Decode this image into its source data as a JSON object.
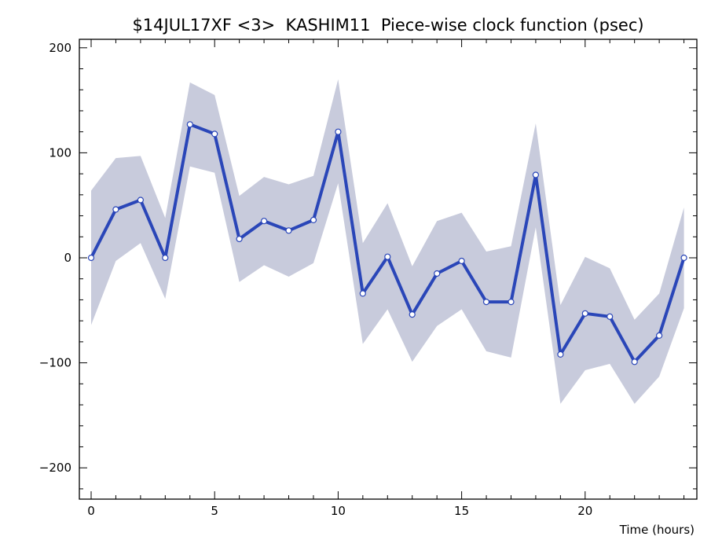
{
  "chart_data": {
    "type": "line",
    "title": "$14JUL17XF <3>  KASHIM11  Piece-wise clock function (psec)",
    "xlabel": "Time (hours)",
    "ylabel": "",
    "xlim": [
      -0.5,
      24.5
    ],
    "ylim": [
      -230,
      205
    ],
    "x_tick_labels": [
      "0",
      "5",
      "10",
      "15",
      "20"
    ],
    "y_tick_labels": [
      "200",
      "100",
      "0",
      "−100",
      "−200"
    ],
    "grid": false,
    "series": [
      {
        "x": [
          0,
          1,
          2,
          3,
          4,
          5,
          6,
          7,
          8,
          9,
          10,
          11,
          12,
          13,
          14,
          15,
          16,
          17,
          18,
          19,
          20,
          21,
          22,
          23,
          24
        ],
        "values": [
          0,
          46,
          55,
          0,
          127,
          118,
          18,
          35,
          26,
          36,
          120,
          -34,
          1,
          -54,
          -15,
          -3,
          -42,
          -42,
          79,
          -92,
          -53,
          -56,
          -99,
          -74,
          0
        ],
        "upper": [
          64,
          95,
          97,
          38,
          167,
          155,
          59,
          77,
          70,
          78,
          170,
          14,
          52,
          -8,
          35,
          43,
          6,
          11,
          128,
          -45,
          1,
          -10,
          -59,
          -34,
          48
        ],
        "lower": [
          -64,
          -3,
          14,
          -39,
          87,
          81,
          -23,
          -7,
          -18,
          -5,
          71,
          -82,
          -49,
          -99,
          -65,
          -49,
          -89,
          -95,
          29,
          -139,
          -107,
          -101,
          -139,
          -113,
          -48
        ]
      }
    ],
    "colors": {
      "line": "#2a46b8",
      "band": "#c8cbdc",
      "marker_fill": "#ffffff",
      "axis": "#000000"
    }
  }
}
